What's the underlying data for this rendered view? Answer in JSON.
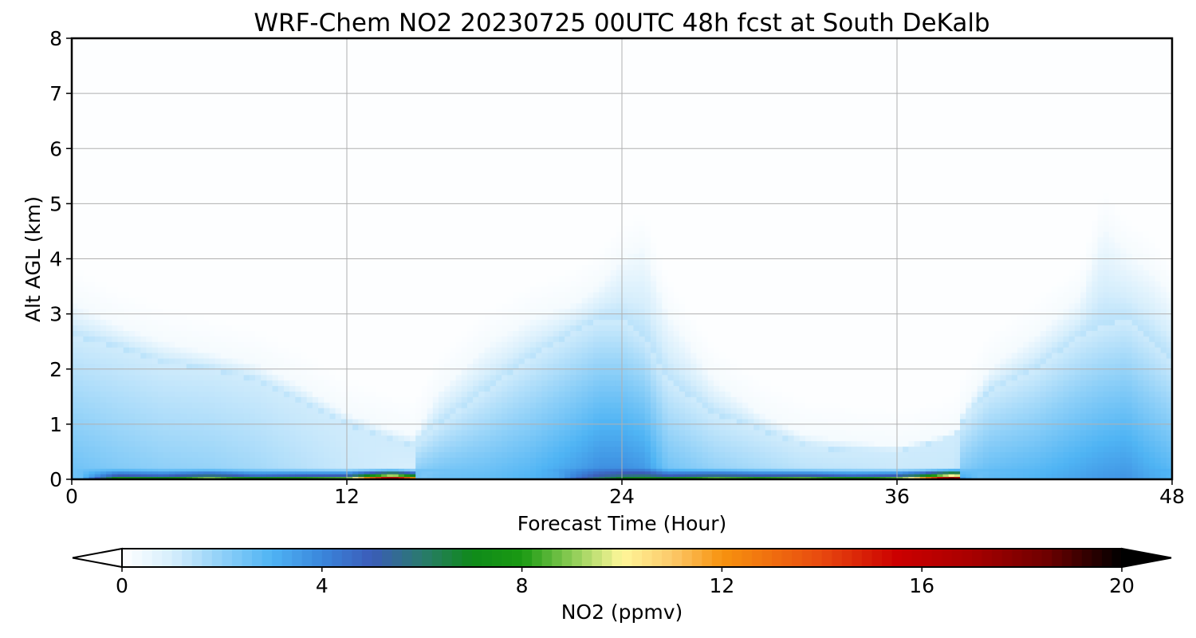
{
  "chart_data": {
    "type": "heatmap",
    "title": "WRF-Chem NO2  20230725 00UTC 48h fcst at South DeKalb",
    "xlabel": "Forecast Time (Hour)",
    "ylabel": "Alt AGL (km)",
    "xlim": [
      0,
      48
    ],
    "ylim": [
      0,
      8
    ],
    "xticks": [
      "0",
      "12",
      "24",
      "36",
      "48"
    ],
    "yticks": [
      "0",
      "1",
      "2",
      "3",
      "4",
      "5",
      "6",
      "7",
      "8"
    ],
    "grid": true,
    "colorbar": {
      "label": "NO2  (ppmv)",
      "range": [
        0,
        20
      ],
      "extend": "both",
      "ticks": [
        "0",
        "4",
        "8",
        "12",
        "16",
        "20"
      ],
      "stops": [
        {
          "v": 0,
          "c": "#ffffff"
        },
        {
          "v": 1,
          "c": "#d6eefc"
        },
        {
          "v": 2,
          "c": "#8fd0f8"
        },
        {
          "v": 3,
          "c": "#4fb4f4"
        },
        {
          "v": 4,
          "c": "#3a86dc"
        },
        {
          "v": 5,
          "c": "#3b5cb8"
        },
        {
          "v": 6,
          "c": "#2a7a6e"
        },
        {
          "v": 7,
          "c": "#0f8a1a"
        },
        {
          "v": 8,
          "c": "#1a9a12"
        },
        {
          "v": 9,
          "c": "#8ccc55"
        },
        {
          "v": 10,
          "c": "#fff79a"
        },
        {
          "v": 11,
          "c": "#fcc96a"
        },
        {
          "v": 12,
          "c": "#f7930f"
        },
        {
          "v": 14,
          "c": "#e8490f"
        },
        {
          "v": 15.5,
          "c": "#cc0000"
        },
        {
          "v": 17,
          "c": "#a80000"
        },
        {
          "v": 18.5,
          "c": "#6e0000"
        },
        {
          "v": 20,
          "c": "#000000"
        }
      ]
    },
    "series": [
      {
        "hours": [
          0,
          2,
          4,
          6,
          8,
          10,
          12,
          14,
          14.9,
          15.1,
          16,
          18,
          20,
          22,
          23,
          24,
          25,
          26,
          28,
          30,
          32,
          34,
          36,
          37,
          38,
          38.6,
          38.8,
          40,
          42,
          44,
          45,
          46,
          47,
          48
        ],
        "sfc": [
          1.5,
          7.5,
          7,
          9,
          7,
          8,
          8.5,
          17,
          12,
          2.5,
          1.2,
          1,
          1.2,
          4.5,
          6,
          7,
          7.5,
          7,
          8.5,
          8,
          8.5,
          7.5,
          8.5,
          11,
          16,
          19,
          3.5,
          2,
          1.8,
          1.5,
          1.5,
          2,
          2,
          3
        ],
        "plume_top": [
          2.6,
          2.4,
          2.1,
          2.0,
          1.8,
          1.4,
          1.0,
          0.7,
          0.6,
          0.7,
          1.0,
          1.6,
          2.2,
          2.7,
          2.9,
          2.9,
          2.6,
          1.8,
          1.2,
          0.9,
          0.6,
          0.5,
          0.5,
          0.6,
          0.7,
          0.8,
          1.0,
          1.6,
          2.0,
          2.6,
          2.8,
          2.9,
          2.6,
          2.2
        ],
        "haze_top": [
          3.2,
          2.8,
          2.5,
          2.3,
          2.1,
          1.7,
          1.2,
          0.9,
          0.8,
          0.9,
          1.6,
          2.4,
          2.9,
          3.2,
          3.5,
          4.0,
          4.2,
          3.0,
          1.8,
          1.2,
          0.8,
          0.7,
          0.6,
          0.7,
          0.8,
          0.9,
          1.2,
          2.0,
          2.6,
          3.3,
          4.6,
          4.1,
          3.8,
          3.3
        ],
        "mid": [
          2.6,
          2.3,
          2.1,
          2.0,
          1.8,
          1.5,
          1.2,
          1.0,
          0.9,
          2.4,
          2.6,
          2.7,
          3.0,
          3.6,
          4.0,
          4.0,
          3.8,
          2.6,
          2.1,
          1.8,
          1.5,
          1.4,
          1.2,
          1.2,
          1.2,
          1.2,
          2.4,
          2.8,
          3.0,
          3.4,
          3.6,
          3.7,
          3.3,
          3.0
        ]
      }
    ]
  }
}
